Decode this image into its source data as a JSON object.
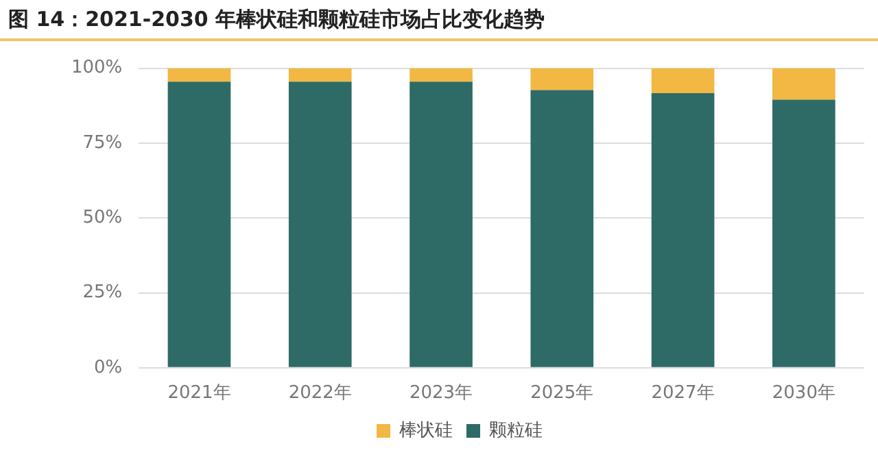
{
  "chart_data": {
    "type": "bar",
    "title": "图 14：2021-2030 年棒状硅和颗粒硅市场占比变化趋势",
    "categories": [
      "2021年",
      "2022年",
      "2023年",
      "2025年",
      "2027年",
      "2030年"
    ],
    "stacked": true,
    "series": [
      {
        "name": "颗粒硅",
        "color": "#2e6b67",
        "values": [
          95.5,
          95.5,
          95.5,
          92.7,
          91.7,
          89.5
        ]
      },
      {
        "name": "棒状硅",
        "color": "#f2b843",
        "values": [
          4.5,
          4.5,
          4.5,
          7.3,
          8.3,
          10.5
        ]
      }
    ],
    "ylim": [
      0,
      100
    ],
    "yticks": [
      {
        "value": 0,
        "label": "0%"
      },
      {
        "value": 25,
        "label": "25%"
      },
      {
        "value": 50,
        "label": "50%"
      },
      {
        "value": 75,
        "label": "75%"
      },
      {
        "value": 100,
        "label": "100%"
      }
    ],
    "grid": "y",
    "legend": "bottom"
  }
}
